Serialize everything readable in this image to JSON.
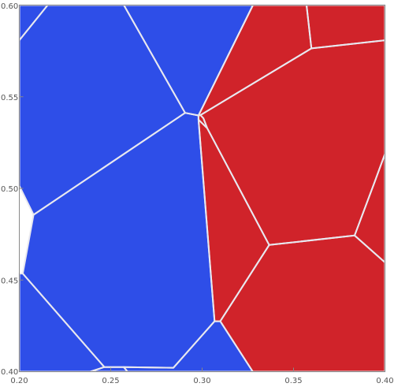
{
  "chart_data": {
    "type": "voronoi",
    "title": "",
    "xlabel": "",
    "ylabel": "",
    "xlim": [
      0.2,
      0.4
    ],
    "ylim": [
      0.4,
      0.6
    ],
    "x_ticks": [
      "0.20",
      "0.25",
      "0.30",
      "0.35",
      "0.40"
    ],
    "y_ticks": [
      "0.40",
      "0.45",
      "0.50",
      "0.55",
      "0.60"
    ],
    "colors": {
      "class_a": "#2e4ee8",
      "class_b": "#d0232a",
      "edge": "#e8e8ef"
    },
    "cells": [
      {
        "class": "a",
        "polygon": [
          [
            0.2,
            0.5808
          ],
          [
            0.2155,
            0.6
          ],
          [
            0.2,
            0.6
          ]
        ]
      },
      {
        "class": "a",
        "polygon": [
          [
            0.2155,
            0.6
          ],
          [
            0.2572,
            0.6
          ],
          [
            0.2907,
            0.5412
          ],
          [
            0.2078,
            0.4856
          ],
          [
            0.2,
            0.5014
          ],
          [
            0.2,
            0.5808
          ]
        ]
      },
      {
        "class": "a",
        "polygon": [
          [
            0.2572,
            0.6
          ],
          [
            0.3278,
            0.6
          ],
          [
            0.298,
            0.5398
          ],
          [
            0.2907,
            0.5412
          ]
        ]
      },
      {
        "class": "b",
        "polygon": [
          [
            0.3278,
            0.6
          ],
          [
            0.3571,
            0.6
          ],
          [
            0.3598,
            0.5764
          ],
          [
            0.2991,
            0.54
          ],
          [
            0.298,
            0.5398
          ]
        ]
      },
      {
        "class": "b",
        "polygon": [
          [
            0.3571,
            0.6
          ],
          [
            0.4,
            0.6
          ],
          [
            0.4,
            0.5808
          ],
          [
            0.3598,
            0.5764
          ]
        ]
      },
      {
        "class": "b",
        "polygon": [
          [
            0.3598,
            0.5764
          ],
          [
            0.4,
            0.5808
          ],
          [
            0.4,
            0.5188
          ],
          [
            0.3945,
            0.5038
          ],
          [
            0.3834,
            0.4743
          ],
          [
            0.3367,
            0.4691
          ],
          [
            0.3028,
            0.5328
          ],
          [
            0.3007,
            0.5383
          ],
          [
            0.2991,
            0.54
          ]
        ]
      },
      {
        "class": "b",
        "polygon": [
          [
            0.298,
            0.5398
          ],
          [
            0.2991,
            0.54
          ],
          [
            0.3007,
            0.5383
          ],
          [
            0.3028,
            0.5328
          ],
          [
            0.298,
            0.5375
          ]
        ]
      },
      {
        "class": "a",
        "polygon": [
          [
            0.2907,
            0.5412
          ],
          [
            0.298,
            0.5398
          ],
          [
            0.298,
            0.5375
          ],
          [
            0.3068,
            0.4275
          ],
          [
            0.2843,
            0.4021
          ],
          [
            0.2571,
            0.4025
          ],
          [
            0.2465,
            0.4025
          ],
          [
            0.2019,
            0.4535
          ],
          [
            0.2078,
            0.4856
          ]
        ]
      },
      {
        "class": "b",
        "polygon": [
          [
            0.298,
            0.5375
          ],
          [
            0.3028,
            0.5328
          ],
          [
            0.3367,
            0.4691
          ],
          [
            0.3099,
            0.4275
          ],
          [
            0.3068,
            0.4275
          ]
        ]
      },
      {
        "class": "a",
        "polygon": [
          [
            0.2,
            0.4535
          ],
          [
            0.2019,
            0.4535
          ],
          [
            0.2465,
            0.4025
          ],
          [
            0.2389,
            0.4
          ],
          [
            0.2,
            0.4
          ]
        ]
      },
      {
        "class": "a",
        "polygon": [
          [
            0.2465,
            0.4025
          ],
          [
            0.2571,
            0.4025
          ],
          [
            0.2592,
            0.4
          ],
          [
            0.2389,
            0.4
          ]
        ]
      },
      {
        "class": "a",
        "polygon": [
          [
            0.2571,
            0.4025
          ],
          [
            0.2843,
            0.4021
          ],
          [
            0.3068,
            0.4275
          ],
          [
            0.3099,
            0.4275
          ],
          [
            0.3277,
            0.4
          ],
          [
            0.2592,
            0.4
          ]
        ]
      },
      {
        "class": "b",
        "polygon": [
          [
            0.3099,
            0.4275
          ],
          [
            0.3367,
            0.4691
          ],
          [
            0.3834,
            0.4743
          ],
          [
            0.4,
            0.4596
          ],
          [
            0.4,
            0.4
          ],
          [
            0.3277,
            0.4
          ]
        ]
      },
      {
        "class": "b",
        "polygon": [
          [
            0.3834,
            0.4743
          ],
          [
            0.3945,
            0.5038
          ],
          [
            0.4,
            0.5188
          ],
          [
            0.4,
            0.4596
          ]
        ]
      }
    ]
  }
}
